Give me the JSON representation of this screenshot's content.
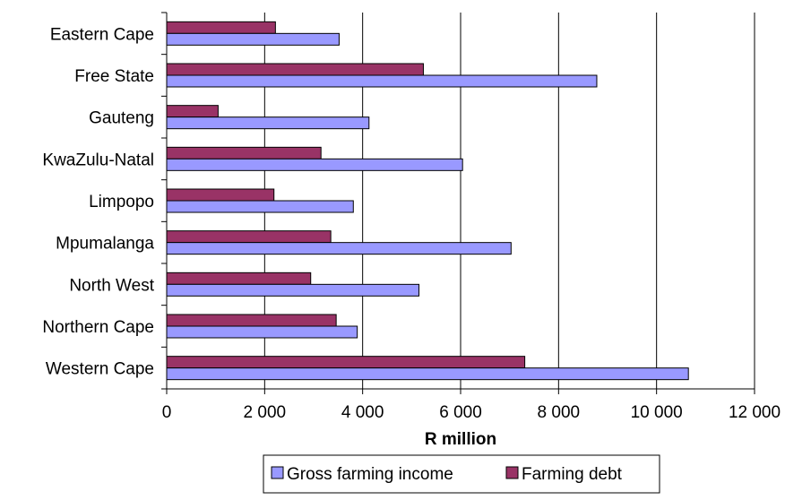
{
  "chart_data": {
    "type": "bar",
    "orientation": "horizontal",
    "categories": [
      "Eastern Cape",
      "Free State",
      "Gauteng",
      "KwaZulu-Natal",
      "Limpopo",
      "Mpumalanga",
      "North West",
      "Northern Cape",
      "Western Cape"
    ],
    "series": [
      {
        "name": "Gross farming income",
        "color": "#9999ff",
        "values": [
          3520,
          8780,
          4130,
          6040,
          3810,
          7030,
          5150,
          3890,
          10650
        ]
      },
      {
        "name": "Farming debt",
        "color": "#993366",
        "values": [
          2220,
          5240,
          1050,
          3150,
          2190,
          3350,
          2940,
          3460,
          7310
        ]
      }
    ],
    "xlabel": "R million",
    "xlim": [
      0,
      12000
    ],
    "xticks": [
      0,
      2000,
      4000,
      6000,
      8000,
      10000,
      12000
    ],
    "xtick_labels": [
      "0",
      "2 000",
      "4 000",
      "6 000",
      "8 000",
      "10 000",
      "12 000"
    ],
    "grid": "vertical",
    "legend_position": "bottom"
  }
}
